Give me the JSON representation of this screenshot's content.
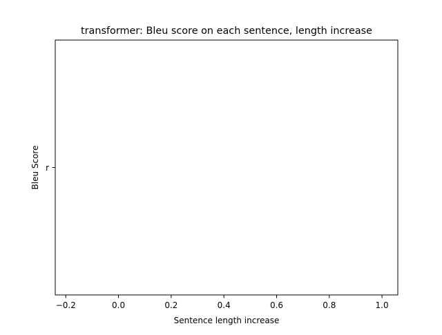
{
  "chart_data": {
    "type": "line",
    "title": "transformer: Bleu score on each sentence, length increase",
    "xlabel": "Sentence length increase",
    "ylabel": "Bleu Score",
    "xlim": [
      -0.24,
      1.06
    ],
    "x_ticks": [
      -0.2,
      0.0,
      0.2,
      0.4,
      0.6,
      0.8,
      1.0
    ],
    "x_tick_labels": [
      "−0.2",
      "0.0",
      "0.2",
      "0.4",
      "0.6",
      "0.8",
      "1.0"
    ],
    "y_ticks": [
      "r"
    ],
    "series": [
      {
        "x": [],
        "y": []
      }
    ],
    "grid": false,
    "legend": "none"
  }
}
